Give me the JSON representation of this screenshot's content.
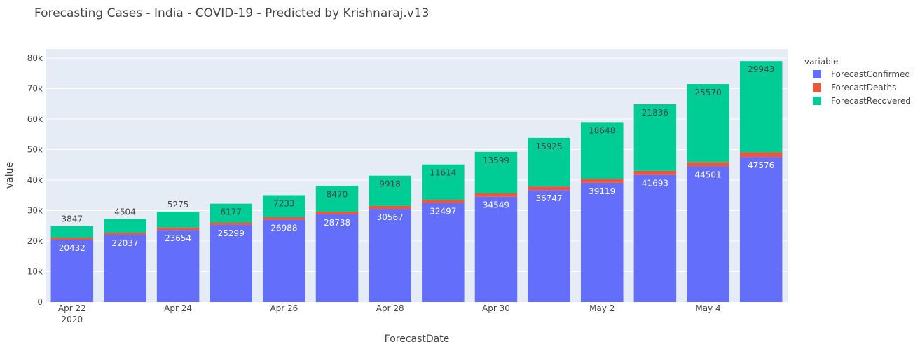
{
  "chart_data": {
    "type": "bar",
    "barmode": "stack",
    "title": "Forecasting Cases - India - COVID-19 - Predicted by Krishnaraj.v13",
    "xlabel": "ForecastDate",
    "ylabel": "value",
    "x": [
      "2020-04-22",
      "2020-04-23",
      "2020-04-24",
      "2020-04-25",
      "2020-04-26",
      "2020-04-27",
      "2020-04-28",
      "2020-04-29",
      "2020-04-30",
      "2020-05-01",
      "2020-05-02",
      "2020-05-03",
      "2020-05-04",
      "2020-05-05"
    ],
    "x_tick_labels": [
      {
        "date": "2020-04-22",
        "line1": "Apr 22",
        "line2": "2020"
      },
      {
        "date": "2020-04-24",
        "line1": "Apr 24",
        "line2": ""
      },
      {
        "date": "2020-04-26",
        "line1": "Apr 26",
        "line2": ""
      },
      {
        "date": "2020-04-28",
        "line1": "Apr 28",
        "line2": ""
      },
      {
        "date": "2020-04-30",
        "line1": "Apr 30",
        "line2": ""
      },
      {
        "date": "2020-05-02",
        "line1": "May 2",
        "line2": ""
      },
      {
        "date": "2020-05-04",
        "line1": "May 4",
        "line2": ""
      }
    ],
    "ylim": [
      0,
      83000
    ],
    "y_ticks": [
      0,
      10000,
      20000,
      30000,
      40000,
      50000,
      60000,
      70000,
      80000
    ],
    "y_tick_labels": [
      "0",
      "10k",
      "20k",
      "30k",
      "40k",
      "50k",
      "60k",
      "70k",
      "80k"
    ],
    "grid": true,
    "legend": {
      "title": "variable",
      "placement": "right"
    },
    "series": [
      {
        "name": "ForecastConfirmed",
        "color": "#636efa",
        "values": [
          20432,
          22037,
          23654,
          25299,
          26988,
          28738,
          30567,
          32497,
          34549,
          36747,
          39119,
          41693,
          44501,
          47576
        ]
      },
      {
        "name": "ForecastDeaths",
        "color": "#ef553b",
        "values": [
          650,
          700,
          740,
          790,
          840,
          900,
          960,
          1020,
          1090,
          1160,
          1240,
          1330,
          1420,
          1530
        ]
      },
      {
        "name": "ForecastRecovered",
        "color": "#00cc96",
        "values": [
          3847,
          4504,
          5275,
          6177,
          7233,
          8470,
          9918,
          11614,
          13599,
          15925,
          18648,
          21836,
          25570,
          29943
        ]
      }
    ],
    "data_labels": [
      {
        "series": "ForecastConfirmed",
        "values": [
          "20432",
          "22037",
          "23654",
          "25299",
          "26988",
          "28738",
          "30567",
          "32497",
          "34549",
          "36747",
          "39119",
          "41693",
          "44501",
          "47576"
        ]
      },
      {
        "series": "ForecastRecovered",
        "values": [
          "3847",
          "4504",
          "5275",
          "6177",
          "7233",
          "8470",
          "9918",
          "11614",
          "13599",
          "15925",
          "18648",
          "21836",
          "25570",
          "29943"
        ]
      }
    ]
  }
}
